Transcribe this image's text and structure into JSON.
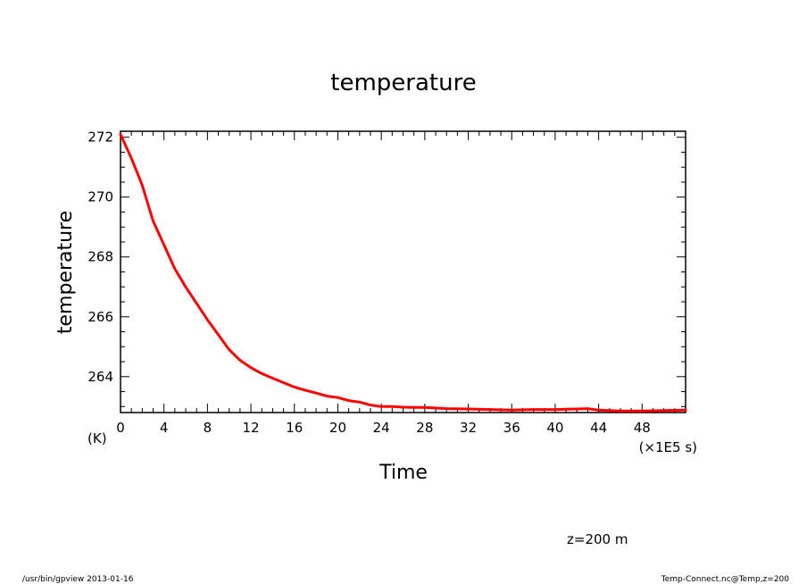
{
  "chart_data": {
    "type": "line",
    "title": "temperature",
    "xlabel": "Time",
    "ylabel": "temperature",
    "x_unit": "(×1E5 s)",
    "y_unit": "(K)",
    "xlim": [
      0,
      52
    ],
    "ylim": [
      262.8,
      272.2
    ],
    "x_ticks": [
      0,
      4,
      8,
      12,
      16,
      20,
      24,
      28,
      32,
      36,
      40,
      44,
      48
    ],
    "x_tick_labels": [
      "0",
      "4",
      "8",
      "12",
      "16",
      "20",
      "24",
      "28",
      "32",
      "36",
      "40",
      "44",
      "48"
    ],
    "y_ticks": [
      264,
      266,
      268,
      270,
      272
    ],
    "y_tick_labels": [
      "264",
      "266",
      "268",
      "270",
      "272"
    ],
    "grid": false,
    "series": [
      {
        "color": "#ff0000",
        "x": [
          0,
          1,
          2,
          3,
          4,
          5,
          6,
          7,
          8,
          9,
          10,
          11,
          12,
          13,
          14,
          15,
          16,
          17,
          18,
          19,
          20,
          21,
          22,
          23,
          24,
          25,
          26,
          27,
          28,
          30,
          32,
          34,
          36,
          38,
          40,
          42,
          43,
          44,
          46,
          48,
          50,
          52
        ],
        "y": [
          272.1,
          271.3,
          270.4,
          269.2,
          268.4,
          267.6,
          267.0,
          266.45,
          265.9,
          265.4,
          264.9,
          264.55,
          264.3,
          264.1,
          263.95,
          263.8,
          263.65,
          263.55,
          263.45,
          263.35,
          263.3,
          263.2,
          263.15,
          263.05,
          263.0,
          263.0,
          262.98,
          262.97,
          262.97,
          262.93,
          262.92,
          262.9,
          262.88,
          262.9,
          262.9,
          262.92,
          262.93,
          262.88,
          262.85,
          262.85,
          262.87,
          262.88
        ]
      }
    ]
  },
  "annotations": {
    "level": "z=200 m"
  },
  "footer": {
    "left": "/usr/bin/gpview   2013-01-16",
    "right": "Temp-Connect.nc@Temp,z=200"
  },
  "colors": {
    "line": "#ff0000",
    "axis": "#000000",
    "background": "#ffffff"
  }
}
